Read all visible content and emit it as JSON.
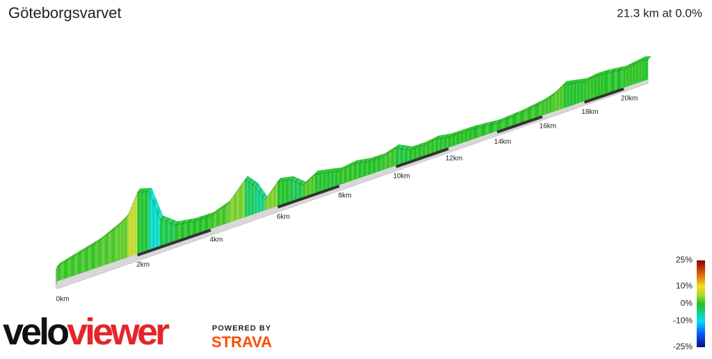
{
  "header": {
    "title": "Göteborgsvarvet",
    "summary": "21.3 km at 0.0%"
  },
  "chart_data": {
    "type": "profile3d",
    "x": [
      0,
      0.5,
      1,
      1.5,
      1.75,
      2,
      2.3,
      2.6,
      3,
      3.5,
      4,
      4.5,
      5,
      5.3,
      5.6,
      6,
      6.4,
      6.8,
      7.2,
      7.6,
      8,
      8.5,
      9,
      9.5,
      10,
      10.5,
      11,
      11.5,
      12,
      12.5,
      13,
      14,
      15,
      16,
      16.5,
      17,
      17.5,
      18,
      18.5,
      19,
      20,
      20.5,
      21,
      21.3
    ],
    "values": [
      10,
      14,
      18,
      25,
      30,
      45,
      43,
      20,
      12,
      10,
      10,
      15,
      30,
      22,
      8,
      20,
      18,
      10,
      16,
      14,
      12,
      14,
      12,
      12,
      16,
      10,
      10,
      12,
      10,
      10,
      10,
      8,
      10,
      14,
      18,
      26,
      24,
      22,
      24,
      24,
      22,
      24,
      26,
      24
    ],
    "xlim": [
      0,
      21.3
    ],
    "xticks": [
      {
        "value": 0,
        "label": "0km"
      },
      {
        "value": 2,
        "label": "2km"
      },
      {
        "value": 4,
        "label": "4km"
      },
      {
        "value": 6,
        "label": "6km"
      },
      {
        "value": 8,
        "label": "8km"
      },
      {
        "value": 10,
        "label": "10km"
      },
      {
        "value": 12,
        "label": "12km"
      },
      {
        "value": 14,
        "label": "14km"
      },
      {
        "value": 16,
        "label": "16km"
      },
      {
        "value": 18,
        "label": "18km"
      },
      {
        "value": 20,
        "label": "20km"
      }
    ],
    "colorbar": {
      "lim": [
        -25,
        25
      ],
      "ticks": [
        {
          "value": 25,
          "label": "25%"
        },
        {
          "value": 10,
          "label": "10%"
        },
        {
          "value": 0,
          "label": "0%"
        },
        {
          "value": -10,
          "label": "-10%"
        },
        {
          "value": -25,
          "label": "-25%"
        }
      ],
      "colorscale": [
        {
          "value": -25,
          "color": "#0a0a8c"
        },
        {
          "value": -17,
          "color": "#0060ff"
        },
        {
          "value": -10,
          "color": "#00e0f0"
        },
        {
          "value": 0,
          "color": "#22c022"
        },
        {
          "value": 5,
          "color": "#b0d830"
        },
        {
          "value": 10,
          "color": "#f0e020"
        },
        {
          "value": 17,
          "color": "#e06010"
        },
        {
          "value": 25,
          "color": "#8b0000"
        }
      ]
    }
  },
  "footer": {
    "brand_left": "velo",
    "brand_right": "viewer",
    "powered": "POWERED BY",
    "strava": "STRAVA"
  }
}
